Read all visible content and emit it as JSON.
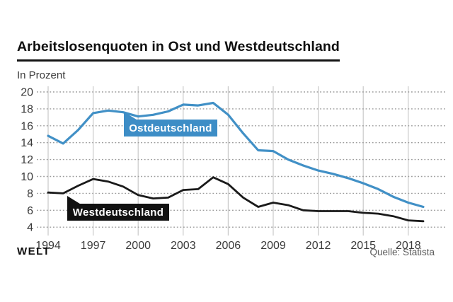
{
  "header": {
    "title": "Arbeitslosenquoten in Ost und Westdeutschland",
    "subtitle": "In Prozent"
  },
  "footer": {
    "logo": "WELT",
    "source": "Quelle: Statista"
  },
  "chart_data": {
    "type": "line",
    "title": "Arbeitslosenquoten in Ost und Westdeutschland",
    "ylabel": "In Prozent",
    "x": [
      1994,
      1995,
      1996,
      1997,
      1998,
      1999,
      2000,
      2001,
      2002,
      2003,
      2004,
      2005,
      2006,
      2007,
      2008,
      2009,
      2010,
      2011,
      2012,
      2013,
      2014,
      2015,
      2016,
      2017,
      2018,
      2019
    ],
    "x_tick_labels": [
      "1994",
      "1997",
      "2000",
      "2003",
      "2006",
      "2009",
      "2012",
      "2015",
      "2018"
    ],
    "x_tick_years": [
      1994,
      1997,
      2000,
      2003,
      2006,
      2009,
      2012,
      2015,
      2018
    ],
    "y_ticks": [
      20,
      18,
      16,
      14,
      12,
      10,
      8,
      6,
      4
    ],
    "ylim": [
      4,
      20
    ],
    "grid": {
      "vertical": "solid",
      "horizontal": "dotted"
    },
    "legend_position": "inline-callouts",
    "series": [
      {
        "name": "Ostdeutschland",
        "color": "#4190c6",
        "label_bg": "#3d8dc6",
        "label_color": "#ffffff",
        "values": [
          14.8,
          13.9,
          15.5,
          17.5,
          17.8,
          17.6,
          17.1,
          17.3,
          17.7,
          18.5,
          18.4,
          18.7,
          17.3,
          15.1,
          13.1,
          13.0,
          12.0,
          11.3,
          10.7,
          10.3,
          9.8,
          9.2,
          8.5,
          7.6,
          6.9,
          6.4
        ]
      },
      {
        "name": "Westdeutschland",
        "color": "#1a1a1a",
        "label_bg": "#111111",
        "label_color": "#ffffff",
        "values": [
          8.1,
          8.0,
          8.9,
          9.7,
          9.4,
          8.8,
          7.8,
          7.4,
          7.5,
          8.4,
          8.5,
          9.9,
          9.1,
          7.5,
          6.4,
          6.9,
          6.6,
          6.0,
          5.9,
          5.9,
          5.9,
          5.7,
          5.6,
          5.3,
          4.8,
          4.7
        ]
      }
    ],
    "source": "Quelle: Statista"
  },
  "colors": {
    "grid_vertical": "#c9c9c9",
    "grid_dotted": "#9c9c9c",
    "tick_label": "#3a3a3a",
    "title_underline": "#141414"
  }
}
